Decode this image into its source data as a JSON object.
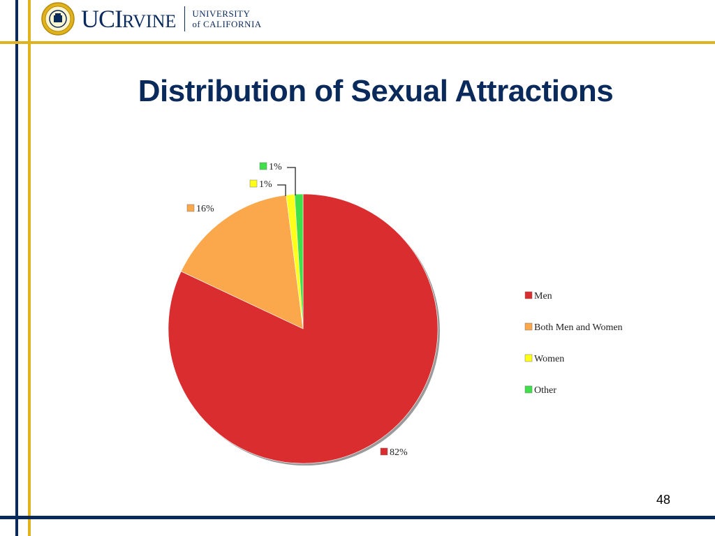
{
  "header": {
    "logo_text_main": "UCI",
    "logo_text_rest": "RVINE",
    "logo_line1": "UNIVERSITY",
    "logo_line2": "of CALIFORNIA",
    "seal_icon": "uc-seal-icon"
  },
  "title": "Distribution of Sexual Attractions",
  "page_number": "48",
  "colors": {
    "navy": "#0b2a5c",
    "gold": "#e0b21c",
    "men": "#d92d2f",
    "both": "#fba74c",
    "women": "#ffff1a",
    "other": "#3fe04a"
  },
  "chart_data": {
    "type": "pie",
    "title": "",
    "categories": [
      "Men",
      "Both Men and Women",
      "Women",
      "Other"
    ],
    "values": [
      82,
      16,
      1,
      1
    ],
    "data_labels": [
      "82%",
      "16%",
      "1%",
      "1%"
    ],
    "colors": [
      "#d92d2f",
      "#fba74c",
      "#ffff1a",
      "#3fe04a"
    ],
    "start_angle_deg": 0,
    "direction": "clockwise",
    "legend": {
      "position": "right",
      "entries": [
        "Men",
        "Both Men and Women",
        "Women",
        "Other"
      ]
    }
  }
}
